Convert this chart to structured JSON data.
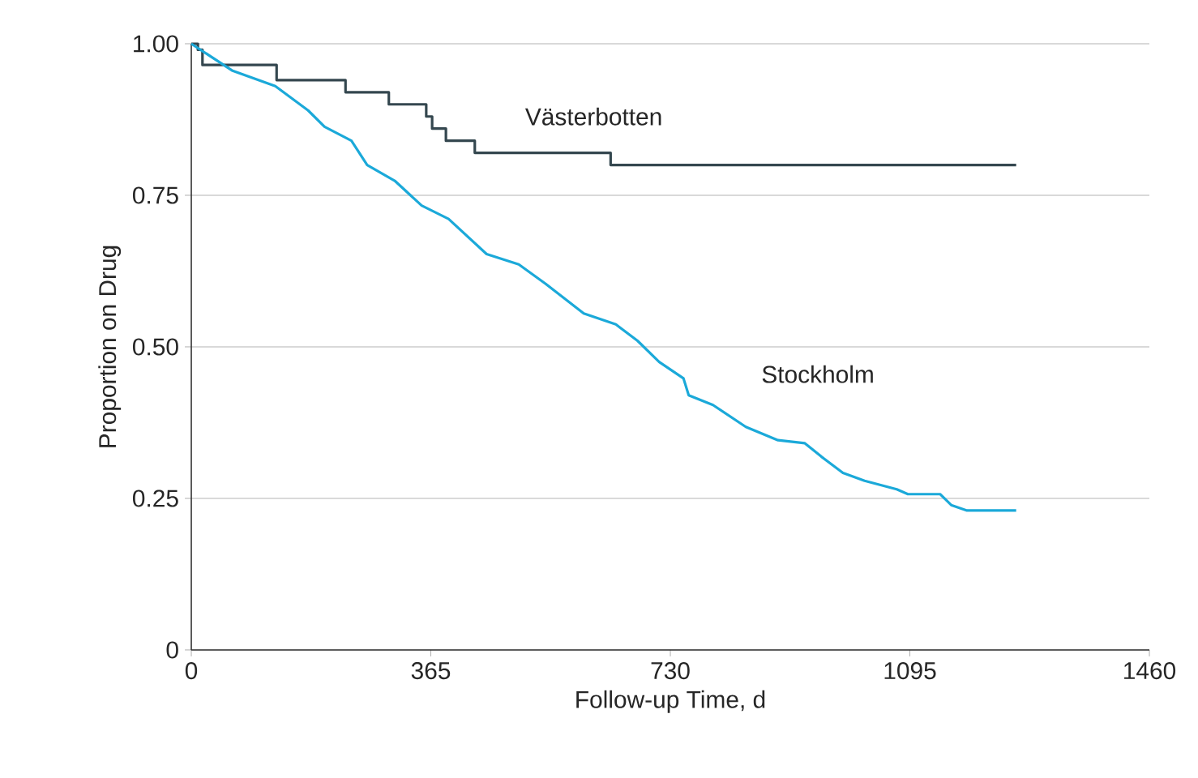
{
  "chart_data": {
    "type": "step",
    "xlabel": "Follow-up Time, d",
    "ylabel": "Proportion on Drug",
    "xlim": [
      0,
      1460
    ],
    "xticks": [
      0,
      365,
      730,
      1095,
      1460
    ],
    "ylim": [
      0,
      1.0
    ],
    "yticks": [
      {
        "value": 0,
        "label": "0"
      },
      {
        "value": 0.25,
        "label": "0.25"
      },
      {
        "value": 0.5,
        "label": "0.50"
      },
      {
        "value": 0.75,
        "label": "0.75"
      },
      {
        "value": 1.0,
        "label": "1.00"
      }
    ],
    "grid": "y",
    "series": [
      {
        "name": "Västerbotten",
        "color": "#34474f",
        "x": [
          0,
          10,
          17,
          130,
          235,
          301,
          358,
          367,
          388,
          432,
          639,
          1257
        ],
        "values": [
          1.0,
          0.99,
          0.965,
          0.94,
          0.92,
          0.9,
          0.88,
          0.86,
          0.84,
          0.82,
          0.8,
          0.8
        ]
      },
      {
        "name": "Stockholm",
        "type": "line",
        "color": "#1ba9d9",
        "x": [
          0,
          62,
          128,
          178,
          203,
          244,
          268,
          310,
          351,
          392,
          450,
          499,
          540,
          598,
          647,
          680,
          713,
          750,
          758,
          795,
          845,
          894,
          935,
          960,
          993,
          1026,
          1075,
          1092,
          1141,
          1158,
          1182,
          1257
        ],
        "values": [
          1.0,
          0.956,
          0.93,
          0.89,
          0.863,
          0.84,
          0.8,
          0.774,
          0.733,
          0.711,
          0.653,
          0.636,
          0.604,
          0.555,
          0.537,
          0.51,
          0.475,
          0.448,
          0.42,
          0.404,
          0.368,
          0.346,
          0.341,
          0.319,
          0.292,
          0.279,
          0.265,
          0.257,
          0.257,
          0.239,
          0.23,
          0.23
        ]
      }
    ]
  }
}
